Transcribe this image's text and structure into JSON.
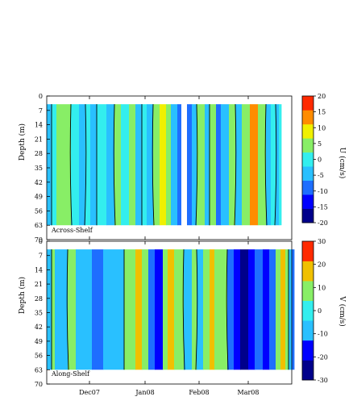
{
  "chart_data": [
    {
      "type": "heatmap",
      "panel_label": "Across-Shelf",
      "ylabel": "Depth (m)",
      "y_ticks": [
        0,
        7,
        14,
        21,
        28,
        35,
        42,
        49,
        56,
        63,
        70
      ],
      "ylim": [
        0,
        70
      ],
      "x_ticks": [
        "Dec07",
        "Jan08",
        "Feb08",
        "Mar08"
      ],
      "data_depth_range": [
        4,
        63
      ],
      "colorbar": {
        "label": "U (cm/s)",
        "ticks": [
          20,
          15,
          10,
          5,
          0,
          -5,
          -10,
          -15,
          -20
        ],
        "levels": [
          -20,
          -15,
          -10,
          -5,
          0,
          5,
          10,
          15,
          20
        ],
        "colors": [
          "#00008b",
          "#0000ff",
          "#1e6eff",
          "#29c0ff",
          "#33eeee",
          "#88ee66",
          "#f0f000",
          "#ff8c00",
          "#ff2a00"
        ]
      },
      "bands": [
        {
          "value": -3,
          "color": "#29c0ff"
        },
        {
          "value": 2,
          "color": "#33eeee"
        },
        {
          "value": 7,
          "color": "#88ee66"
        },
        {
          "value": -1,
          "color": "#33eeee"
        },
        {
          "value": -3,
          "color": "#29c0ff"
        },
        {
          "value": 2,
          "color": "#33eeee"
        },
        {
          "value": -3,
          "color": "#29c0ff"
        },
        {
          "value": 2,
          "color": "#33eeee"
        },
        {
          "value": -3,
          "color": "#29c0ff"
        },
        {
          "value": 7,
          "color": "#88ee66"
        },
        {
          "value": 4,
          "color": "#33eeee"
        },
        {
          "value": 7,
          "color": "#88ee66"
        },
        {
          "value": -3,
          "color": "#29c0ff"
        },
        {
          "value": 2,
          "color": "#33eeee"
        },
        {
          "value": -3,
          "color": "#29c0ff"
        },
        {
          "value": 7,
          "color": "#88ee66"
        },
        {
          "value": 11,
          "color": "#f0f000"
        },
        {
          "value": 7,
          "color": "#88ee66"
        },
        {
          "value": -3,
          "color": "#29c0ff"
        },
        {
          "value": -12,
          "color": "#1e6eff"
        },
        {
          "value": -22,
          "color": "#ffffff"
        },
        {
          "value": -12,
          "color": "#1e6eff"
        },
        {
          "value": -3,
          "color": "#29c0ff"
        },
        {
          "value": 7,
          "color": "#88ee66"
        },
        {
          "value": -3,
          "color": "#29c0ff"
        },
        {
          "value": 7,
          "color": "#88ee66"
        },
        {
          "value": -12,
          "color": "#1e6eff"
        },
        {
          "value": -3,
          "color": "#29c0ff"
        },
        {
          "value": 7,
          "color": "#88ee66"
        },
        {
          "value": -3,
          "color": "#29c0ff"
        },
        {
          "value": 7,
          "color": "#88ee66"
        },
        {
          "value": 16,
          "color": "#ff8c00"
        },
        {
          "value": 7,
          "color": "#88ee66"
        },
        {
          "value": -3,
          "color": "#29c0ff"
        },
        {
          "value": 2,
          "color": "#33eeee"
        },
        {
          "value": -3,
          "color": "#29c0ff"
        },
        {
          "value": 2,
          "color": "#33eeee"
        }
      ]
    },
    {
      "type": "heatmap",
      "panel_label": "Along-Shelf",
      "ylabel": "Depth (m)",
      "y_ticks": [
        0,
        7,
        14,
        21,
        28,
        35,
        42,
        49,
        56,
        63,
        70
      ],
      "ylim": [
        0,
        70
      ],
      "x_ticks": [
        "Dec07",
        "Jan08",
        "Feb08",
        "Mar08"
      ],
      "data_depth_range": [
        4,
        63
      ],
      "colorbar": {
        "label": "V (cm/s)",
        "ticks": [
          30,
          20,
          10,
          0,
          -10,
          -20,
          -30
        ],
        "levels": [
          -30,
          -20,
          -10,
          0,
          10,
          20,
          30
        ],
        "colors": [
          "#00008b",
          "#0000ff",
          "#29c0ff",
          "#33eeee",
          "#88ee66",
          "#f0c000",
          "#ff2a00"
        ]
      },
      "bands": [
        {
          "value": -5,
          "color": "#29c0ff"
        },
        {
          "value": 5,
          "color": "#88ee66"
        },
        {
          "value": -5,
          "color": "#29c0ff"
        },
        {
          "value": 5,
          "color": "#88ee66"
        },
        {
          "value": -5,
          "color": "#29c0ff"
        },
        {
          "value": -15,
          "color": "#1e6eff"
        },
        {
          "value": -5,
          "color": "#29c0ff"
        },
        {
          "value": 5,
          "color": "#88ee66"
        },
        {
          "value": 14,
          "color": "#f0c000"
        },
        {
          "value": 5,
          "color": "#88ee66"
        },
        {
          "value": -15,
          "color": "#1e6eff"
        },
        {
          "value": -25,
          "color": "#0000ff"
        },
        {
          "value": 5,
          "color": "#88ee66"
        },
        {
          "value": 14,
          "color": "#f0c000"
        },
        {
          "value": 5,
          "color": "#88ee66"
        },
        {
          "value": -5,
          "color": "#29c0ff"
        },
        {
          "value": 5,
          "color": "#88ee66"
        },
        {
          "value": -5,
          "color": "#29c0ff"
        },
        {
          "value": 5,
          "color": "#88ee66"
        },
        {
          "value": 14,
          "color": "#f0c000"
        },
        {
          "value": 5,
          "color": "#88ee66"
        },
        {
          "value": -15,
          "color": "#1e6eff"
        },
        {
          "value": -25,
          "color": "#0000ff"
        },
        {
          "value": -32,
          "color": "#00008b"
        },
        {
          "value": -25,
          "color": "#0000ff"
        },
        {
          "value": -15,
          "color": "#1e6eff"
        },
        {
          "value": -25,
          "color": "#0000ff"
        },
        {
          "value": -15,
          "color": "#1e6eff"
        },
        {
          "value": 5,
          "color": "#88ee66"
        },
        {
          "value": 14,
          "color": "#f0c000"
        },
        {
          "value": 5,
          "color": "#88ee66"
        },
        {
          "value": -5,
          "color": "#29c0ff"
        },
        {
          "value": -15,
          "color": "#1e6eff"
        }
      ]
    }
  ]
}
